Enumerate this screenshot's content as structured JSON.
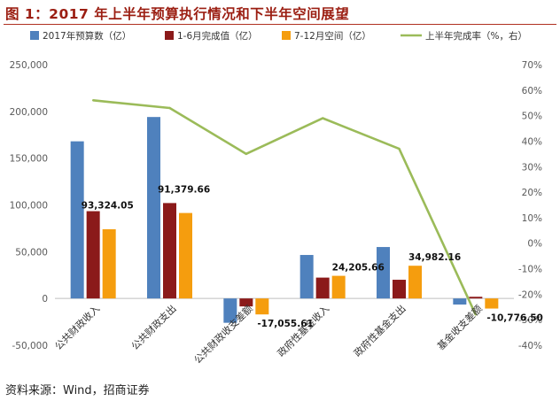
{
  "chart_data": {
    "type": "bar",
    "title": "图 1：2017 年上半年预算执行情况和下半年空间展望",
    "categories": [
      "公共财政收入",
      "公共财政支出",
      "公共财政收支差额",
      "政府性基金收入",
      "政府性基金支出",
      "基金收支差额"
    ],
    "series": [
      {
        "name": "2017年预算数（亿）",
        "kind": "bar",
        "color": "#4f81bd",
        "values": [
          168000,
          194000,
          -26000,
          46500,
          55000,
          -6500
        ]
      },
      {
        "name": "1-6月完成值（亿）",
        "kind": "bar",
        "color": "#8b1a1a",
        "values": [
          93324.05,
          102000,
          -8500,
          22300,
          20000,
          1800
        ]
      },
      {
        "name": "7-12月空间（亿）",
        "kind": "bar",
        "color": "#f59d0e",
        "values": [
          74000,
          91379.66,
          -17055.61,
          24205.66,
          34982.16,
          -10776.5
        ]
      },
      {
        "name": "上半年完成率（%，右）",
        "kind": "line",
        "axis": "right",
        "color": "#9bbb59",
        "values": [
          56,
          53,
          35,
          49,
          37,
          -28
        ]
      }
    ],
    "data_labels": [
      {
        "category": 0,
        "text": "93,324.05"
      },
      {
        "category": 1,
        "text": "91,379.66"
      },
      {
        "category": 2,
        "text": "-17,055.61"
      },
      {
        "category": 3,
        "text": "24,205.66"
      },
      {
        "category": 4,
        "text": "34,982.16"
      },
      {
        "category": 5,
        "text": "-10,776.50"
      }
    ],
    "y_left": {
      "min": -50000,
      "max": 250000,
      "step": 50000,
      "ticks": [
        "-50,000",
        "0",
        "50,000",
        "100,000",
        "150,000",
        "200,000",
        "250,000"
      ]
    },
    "y_right": {
      "min": -40,
      "max": 70,
      "step": 10,
      "ticks": [
        "-40%",
        "-30%",
        "-20%",
        "-10%",
        "0%",
        "10%",
        "20%",
        "30%",
        "40%",
        "50%",
        "60%",
        "70%"
      ]
    },
    "legend_position": "top",
    "grid": false
  },
  "source": "资料来源：Wind，招商证券",
  "colors": {
    "title": "#9b1e12",
    "axis_text": "#595959",
    "zero_line": "#bfbfbf"
  }
}
